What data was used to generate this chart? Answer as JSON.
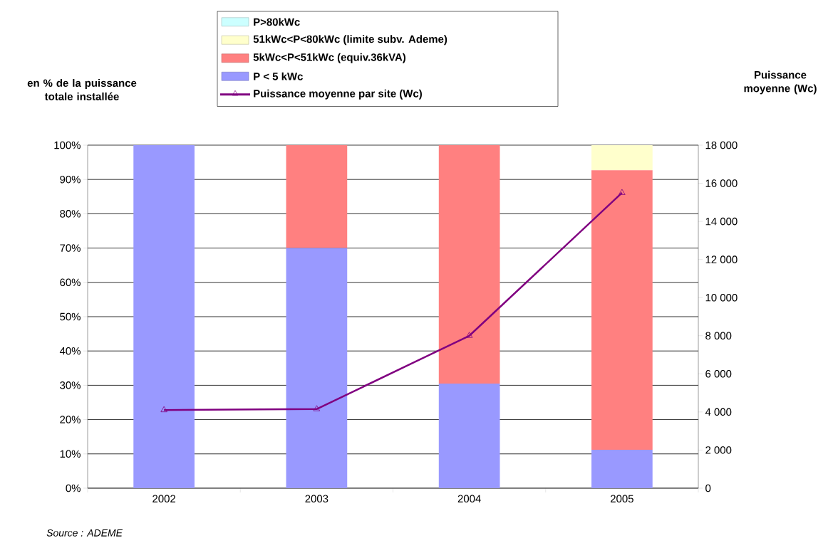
{
  "chart_data": {
    "type": "bar",
    "stacked": true,
    "categories": [
      "2002",
      "2003",
      "2004",
      "2005"
    ],
    "series": [
      {
        "name": "P < 5 kWc",
        "color": "#9999ff",
        "values": [
          100,
          70,
          30.5,
          11.2
        ]
      },
      {
        "name": "5kWc<P<51kWc (equiv.36kVA)",
        "color": "#ff8080",
        "values": [
          0,
          30,
          69.5,
          81.5
        ]
      },
      {
        "name": "51kWc<P<80kWc (limite subv. Ademe)",
        "color": "#ffffcc",
        "values": [
          0,
          0,
          0,
          7.3
        ]
      },
      {
        "name": "P>80kWc",
        "color": "#ccffff",
        "values": [
          0,
          0,
          0,
          0
        ]
      },
      {
        "name": "Puissance moyenne par site (Wc)",
        "type": "line",
        "axis": "y2",
        "color": "#800080",
        "marker": "triangle",
        "line_style": "solid",
        "values": [
          4100,
          4150,
          8000,
          15500
        ]
      }
    ],
    "ylim": [
      0,
      100
    ],
    "yticks": [
      {
        "value": 0,
        "label": "0%"
      },
      {
        "value": 10,
        "label": "10%"
      },
      {
        "value": 20,
        "label": "20%"
      },
      {
        "value": 30,
        "label": "30%"
      },
      {
        "value": 40,
        "label": "40%"
      },
      {
        "value": 50,
        "label": "50%"
      },
      {
        "value": 60,
        "label": "60%"
      },
      {
        "value": 70,
        "label": "70%"
      },
      {
        "value": 80,
        "label": "80%"
      },
      {
        "value": 90,
        "label": "90%"
      },
      {
        "value": 100,
        "label": "100%"
      }
    ],
    "y2lim": [
      0,
      18000
    ],
    "y2ticks": [
      0,
      {
        "value": 2000,
        "label": "2 000"
      },
      {
        "value": 4000,
        "label": "4 000"
      },
      {
        "value": 6000,
        "label": "6 000"
      },
      {
        "value": 8000,
        "label": "8 000"
      },
      {
        "value": 10000,
        "label": "10 000"
      },
      {
        "value": 12000,
        "label": "12 000"
      },
      {
        "value": 14000,
        "label": "14 000"
      },
      {
        "value": 16000,
        "label": "16 000"
      },
      {
        "value": 18000,
        "label": "18 000"
      }
    ],
    "ylabel": "en % de la puissance totale installée",
    "y2label": "Puissance moyenne (Wc)",
    "grid": "y",
    "legend": "top",
    "annotations": [
      "Source : ADEME"
    ]
  }
}
